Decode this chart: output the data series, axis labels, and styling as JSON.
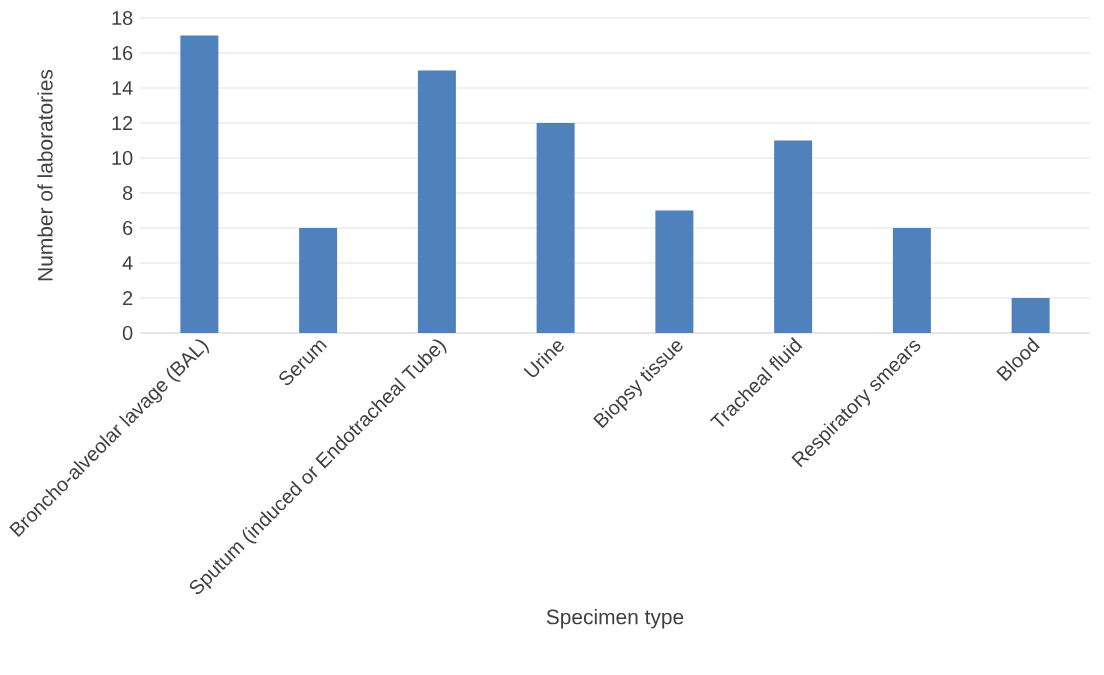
{
  "chart_data": {
    "type": "bar",
    "xlabel": "Specimen type",
    "ylabel": "Number of laboratories",
    "categories": [
      "Broncho-alveolar lavage (BAL)",
      "Serum",
      "Sputum (induced or Endotracheal Tube)",
      "Urine",
      "Biopsy tissue",
      "Tracheal fluid",
      "Respiratory smears",
      "Blood"
    ],
    "values": [
      17,
      6,
      15,
      12,
      7,
      11,
      6,
      2
    ],
    "color": "#4f81bd",
    "ylim": [
      0,
      18
    ],
    "yticks": [
      0,
      2,
      4,
      6,
      8,
      10,
      12,
      14,
      16,
      18
    ],
    "grid": "y"
  }
}
